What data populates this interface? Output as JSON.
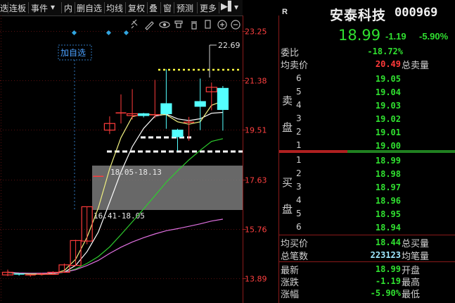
{
  "toolbar": {
    "items": [
      "连板",
      "事件",
      "内",
      "删自选",
      "均线",
      "复权",
      "叠",
      "窗",
      "预测",
      "更多"
    ],
    "truncated_left": "迭"
  },
  "chart": {
    "price_labels": [
      "23.25",
      "21.38",
      "19.51",
      "17.63",
      "15.76",
      "13.89"
    ],
    "high_marker": "22.69",
    "zone_upper_label": "18.05-18.13",
    "zone_lower_label": "16.41-18.05",
    "add_watchlist": "加自选",
    "colors": {
      "up": "#ff3b3b",
      "down": "#54ffff",
      "ma5": "#ffffff",
      "ma10": "#f0f080",
      "ma20": "#2ecc2e",
      "ma60": "#e070e0",
      "price_axis": "#ff4040"
    },
    "candles": [
      {
        "open": 14.02,
        "close": 14.12,
        "high": 14.22,
        "low": 13.97
      },
      {
        "open": 14.05,
        "close": 14.03,
        "high": 14.08,
        "low": 13.99
      },
      {
        "open": 13.98,
        "close": 14.02,
        "high": 14.05,
        "low": 13.95
      },
      {
        "open": 14.03,
        "close": 14.05,
        "high": 14.1,
        "low": 14.0
      },
      {
        "open": 14.04,
        "close": 14.12,
        "high": 14.16,
        "low": 14.02
      },
      {
        "open": 14.12,
        "close": 14.4,
        "high": 14.45,
        "low": 14.1
      },
      {
        "open": 14.38,
        "close": 15.32,
        "high": 15.35,
        "low": 14.38
      },
      {
        "open": 15.3,
        "close": 16.6,
        "high": 16.6,
        "low": 15.18
      },
      {
        "open": 17.75,
        "close": 17.75,
        "high": 17.75,
        "low": 17.75
      },
      {
        "open": 19.5,
        "close": 19.75,
        "high": 20.02,
        "low": 19.35
      },
      {
        "open": 20.12,
        "close": 20.15,
        "high": 20.85,
        "low": 19.75
      },
      {
        "open": 20.05,
        "close": 20.12,
        "high": 21.05,
        "low": 19.9
      },
      {
        "open": 20.12,
        "close": 20.05,
        "high": 20.15,
        "low": 19.98
      },
      {
        "open": 20.05,
        "close": 20.08,
        "high": 21.4,
        "low": 19.95
      },
      {
        "open": 20.5,
        "close": 20.12,
        "high": 21.8,
        "low": 19.55
      },
      {
        "open": 19.5,
        "close": 19.25,
        "high": 19.55,
        "low": 18.72
      },
      {
        "open": 19.8,
        "close": 19.8,
        "high": 20.0,
        "low": 19.1
      },
      {
        "open": 20.58,
        "close": 20.4,
        "high": 21.45,
        "low": 19.5
      },
      {
        "open": 20.95,
        "close": 21.12,
        "high": 21.3,
        "low": 20.25
      },
      {
        "open": 21.08,
        "close": 20.28,
        "high": 21.17,
        "low": 19.48
      }
    ]
  },
  "quote": {
    "title": "安泰科技",
    "code": "000969",
    "r_flag": "R",
    "price": "18.99",
    "change": "-1.19",
    "pct": "-5.90%",
    "weibi_label": "委比",
    "weibi": "-18.72%",
    "junmai_label": "均卖价",
    "junmai": "20.49",
    "zongmai_label": "总卖量",
    "sell_side": "卖盘",
    "buy_side": "买盘",
    "sell": [
      [
        "6",
        "19.05"
      ],
      [
        "5",
        "19.04"
      ],
      [
        "4",
        "19.03"
      ],
      [
        "3",
        "19.02"
      ],
      [
        "2",
        "19.01"
      ],
      [
        "1",
        "19.00"
      ]
    ],
    "buy": [
      [
        "1",
        "18.99"
      ],
      [
        "2",
        "18.98"
      ],
      [
        "3",
        "18.97"
      ],
      [
        "4",
        "18.96"
      ],
      [
        "5",
        "18.95"
      ],
      [
        "6",
        "18.94"
      ]
    ],
    "junbuy_label": "均买价",
    "junbuy": "18.44",
    "zongbuy_label": "总买量",
    "zongbi_label": "总笔数",
    "zongbi": "223123",
    "junbi_label": "均笔量",
    "zuixin_label": "最新",
    "zuixin": "18.99",
    "kaipan_label": "开盘",
    "zhangdie_label": "涨跌",
    "zhangdie": "-1.19",
    "zuigao_label": "最高",
    "zhangfu_label": "涨幅",
    "zhangfu": "-5.90%",
    "zuidi_label": "最低"
  }
}
